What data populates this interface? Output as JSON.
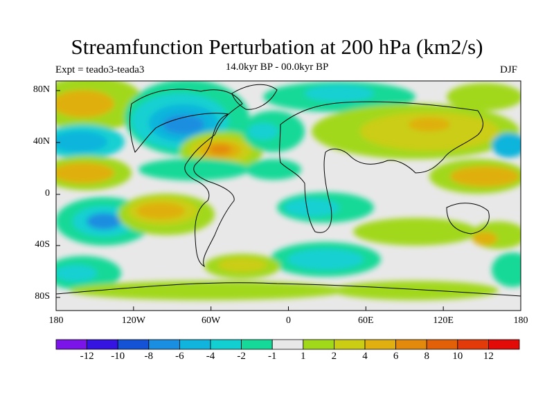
{
  "title": "Streamfunction Perturbation at 200 hPa (km2/s)",
  "subtitle": "14.0kyr BP - 00.0kyr BP",
  "left_label": "Expt = teado3-teada3",
  "right_label": "DJF",
  "lat_ticks": [
    "80N",
    "40N",
    "0",
    "40S",
    "80S"
  ],
  "lon_ticks": [
    "180",
    "120W",
    "60W",
    "0",
    "60E",
    "120E",
    "180"
  ],
  "colorbar": {
    "labels": [
      "-12",
      "-10",
      "-8",
      "-6",
      "-4",
      "-2",
      "-1",
      "1",
      "2",
      "4",
      "6",
      "8",
      "10",
      "12"
    ],
    "colors": [
      "#7b14e8",
      "#3513e0",
      "#1553d6",
      "#1a8ee0",
      "#11b4dc",
      "#12d0d2",
      "#14d998",
      "#e8e8e8",
      "#a2d81a",
      "#cbcd15",
      "#dfb010",
      "#e38a0c",
      "#e26108",
      "#e23a08",
      "#e20b08"
    ]
  },
  "colors": {
    "land_outline": "#000000",
    "neutral": "#e8e8e8"
  }
}
